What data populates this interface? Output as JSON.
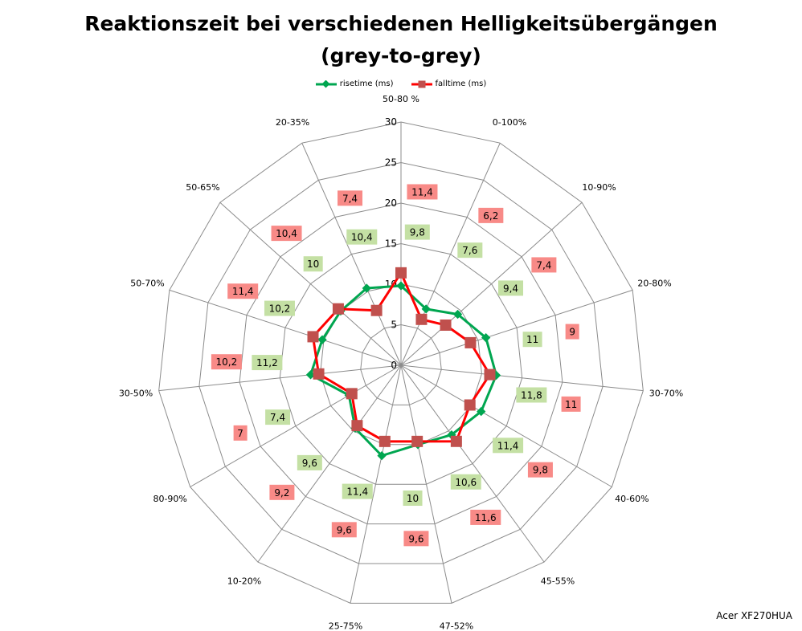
{
  "chart_data": {
    "type": "radar",
    "title_line1": "Reaktionszeit bei verschiedenen Helligkeitsübergängen",
    "title_line2": "(grey-to-grey)",
    "categories": [
      "50-80 %",
      "0-100%",
      "10-90%",
      "20-80%",
      "30-70%",
      "40-60%",
      "45-55%",
      "47-52%",
      "25-75%",
      "10-20%",
      "80-90%",
      "30-50%",
      "50-70%",
      "50-65%",
      "20-35%"
    ],
    "rlim": [
      0,
      30
    ],
    "ticks": [
      "0",
      "5",
      "10",
      "15",
      "20",
      "25",
      "30"
    ],
    "legend_position": "top",
    "series": [
      {
        "name": "risetime (ms)",
        "color": "#00a650",
        "label_bg": "#c4e0a4",
        "values": [
          9.8,
          7.6,
          9.4,
          11,
          11.8,
          11.4,
          10.6,
          10,
          11.4,
          9.6,
          7.4,
          11.2,
          10.2,
          10,
          10.4
        ],
        "labels": [
          "9,8",
          "7,6",
          "9,4",
          "11",
          "11,8",
          "11,4",
          "10,6",
          "10",
          "11,4",
          "9,6",
          "7,4",
          "11,2",
          "10,2",
          "10",
          "10,4"
        ]
      },
      {
        "name": "falltime (ms)",
        "color": "#ff0000",
        "marker": "#c0504d",
        "label_bg": "#f88a87",
        "values": [
          11.4,
          6.2,
          7.4,
          9,
          11,
          9.8,
          11.6,
          9.6,
          9.6,
          9.2,
          7,
          10.2,
          11.4,
          10.4,
          7.4
        ],
        "labels": [
          "11,4",
          "6,2",
          "7,4",
          "9",
          "11",
          "9,8",
          "11,6",
          "9,6",
          "9,6",
          "9,2",
          "7",
          "10,2",
          "11,4",
          "10,4",
          "7,4"
        ]
      }
    ]
  },
  "footer": "Acer XF270HUA"
}
